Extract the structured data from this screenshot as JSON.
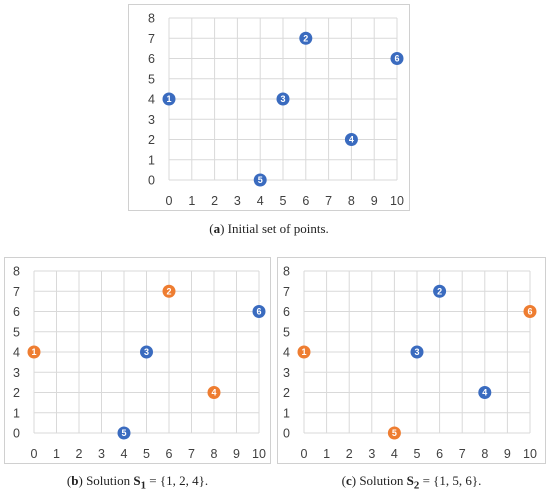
{
  "colors": {
    "blue": "#3a6bbf",
    "orange": "#ee7d31",
    "grid": "#d9d9d9"
  },
  "chart_data": [
    {
      "type": "scatter",
      "caption_letter": "a",
      "caption_text": "Initial set of points.",
      "xlim": [
        0,
        10
      ],
      "ylim": [
        0,
        8
      ],
      "xticks": [
        "0",
        "1",
        "2",
        "3",
        "4",
        "5",
        "6",
        "7",
        "8",
        "9",
        "10"
      ],
      "yticks": [
        "0",
        "1",
        "2",
        "3",
        "4",
        "5",
        "6",
        "7",
        "8"
      ],
      "grid": true,
      "points": [
        {
          "label": "1",
          "x": 0,
          "y": 4,
          "color": "blue"
        },
        {
          "label": "2",
          "x": 6,
          "y": 7,
          "color": "blue"
        },
        {
          "label": "3",
          "x": 5,
          "y": 4,
          "color": "blue"
        },
        {
          "label": "4",
          "x": 8,
          "y": 2,
          "color": "blue"
        },
        {
          "label": "5",
          "x": 4,
          "y": 0,
          "color": "blue"
        },
        {
          "label": "6",
          "x": 10,
          "y": 6,
          "color": "blue"
        }
      ]
    },
    {
      "type": "scatter",
      "caption_letter": "b",
      "caption_pre": "Solution",
      "caption_var": "S",
      "caption_sub": "1",
      "caption_post": "= {1, 2, 4}.",
      "xlim": [
        0,
        10
      ],
      "ylim": [
        0,
        8
      ],
      "xticks": [
        "0",
        "1",
        "2",
        "3",
        "4",
        "5",
        "6",
        "7",
        "8",
        "9",
        "10"
      ],
      "yticks": [
        "0",
        "1",
        "2",
        "3",
        "4",
        "5",
        "6",
        "7",
        "8"
      ],
      "grid": true,
      "points": [
        {
          "label": "1",
          "x": 0,
          "y": 4,
          "color": "orange"
        },
        {
          "label": "2",
          "x": 6,
          "y": 7,
          "color": "orange"
        },
        {
          "label": "3",
          "x": 5,
          "y": 4,
          "color": "blue"
        },
        {
          "label": "4",
          "x": 8,
          "y": 2,
          "color": "orange"
        },
        {
          "label": "5",
          "x": 4,
          "y": 0,
          "color": "blue"
        },
        {
          "label": "6",
          "x": 10,
          "y": 6,
          "color": "blue"
        }
      ]
    },
    {
      "type": "scatter",
      "caption_letter": "c",
      "caption_pre": "Solution",
      "caption_var": "S",
      "caption_sub": "2",
      "caption_post": "= {1, 5, 6}.",
      "xlim": [
        0,
        10
      ],
      "ylim": [
        0,
        8
      ],
      "xticks": [
        "0",
        "1",
        "2",
        "3",
        "4",
        "5",
        "6",
        "7",
        "8",
        "9",
        "10"
      ],
      "yticks": [
        "0",
        "1",
        "2",
        "3",
        "4",
        "5",
        "6",
        "7",
        "8"
      ],
      "grid": true,
      "points": [
        {
          "label": "1",
          "x": 0,
          "y": 4,
          "color": "orange"
        },
        {
          "label": "2",
          "x": 6,
          "y": 7,
          "color": "blue"
        },
        {
          "label": "3",
          "x": 5,
          "y": 4,
          "color": "blue"
        },
        {
          "label": "4",
          "x": 8,
          "y": 2,
          "color": "blue"
        },
        {
          "label": "5",
          "x": 4,
          "y": 0,
          "color": "orange"
        },
        {
          "label": "6",
          "x": 10,
          "y": 6,
          "color": "orange"
        }
      ]
    }
  ]
}
